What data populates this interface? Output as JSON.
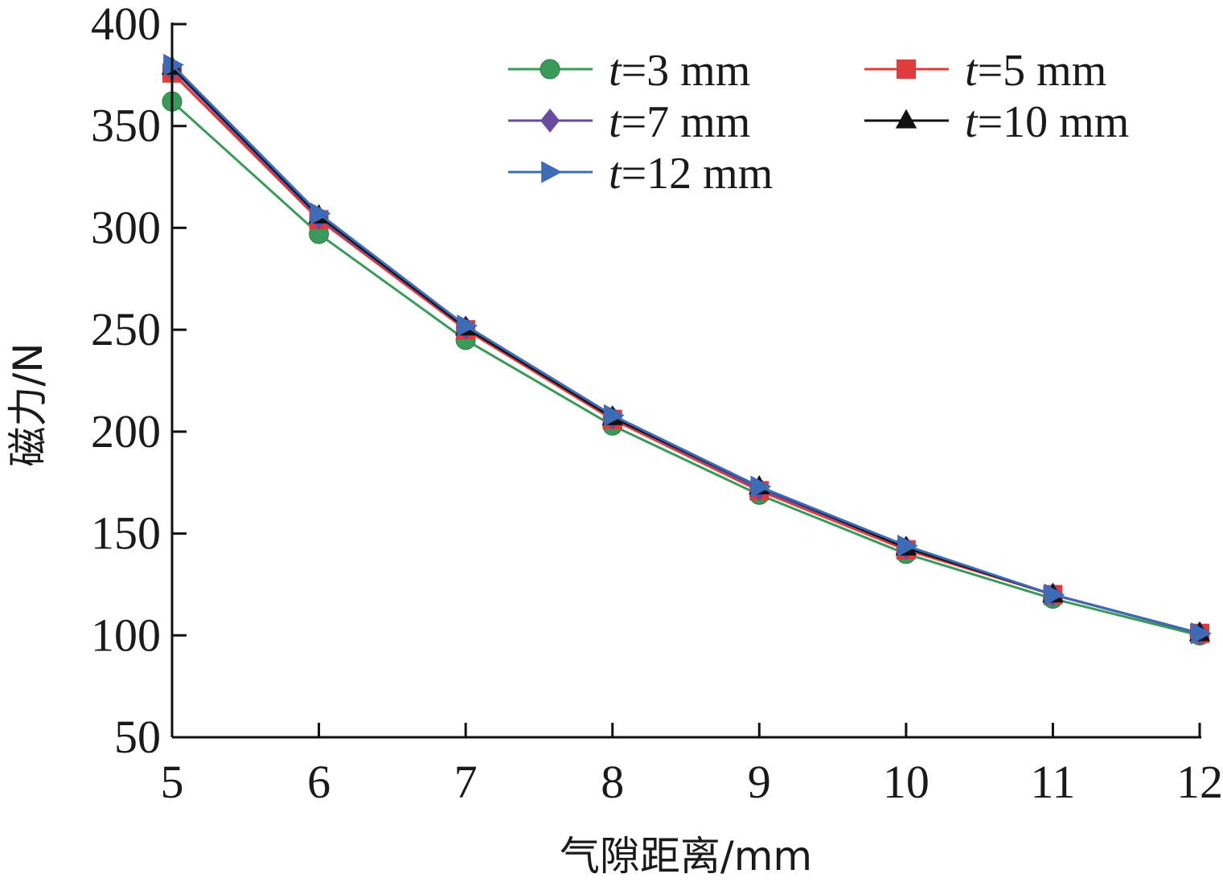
{
  "chart_data": {
    "type": "line",
    "xlabel": "气隙距离/mm",
    "ylabel": "磁力/N",
    "xlim": [
      5,
      12
    ],
    "ylim": [
      50,
      400
    ],
    "x": [
      5,
      6,
      7,
      8,
      9,
      10,
      11,
      12
    ],
    "x_ticks": [
      "5",
      "6",
      "7",
      "8",
      "9",
      "10",
      "11",
      "12"
    ],
    "y_ticks": [
      "50",
      "100",
      "150",
      "200",
      "250",
      "300",
      "350",
      "400"
    ],
    "grid": false,
    "legend_position": "top-right",
    "series": [
      {
        "name_prefix": "t",
        "name_suffix": "=3 mm",
        "color": "#3a9a5a",
        "marker": "circle",
        "values": [
          362,
          297,
          245,
          203,
          169,
          140,
          118,
          100
        ]
      },
      {
        "name_prefix": "t",
        "name_suffix": "=5 mm",
        "color": "#e03c3c",
        "marker": "square",
        "values": [
          376,
          304,
          250,
          206,
          171,
          142,
          120,
          101
        ]
      },
      {
        "name_prefix": "t",
        "name_suffix": "=7 mm",
        "color": "#6a4a9e",
        "marker": "diamond",
        "values": [
          378,
          305,
          251,
          207,
          172,
          143,
          120,
          101
        ]
      },
      {
        "name_prefix": "t",
        "name_suffix": "=10 mm",
        "color": "#111111",
        "marker": "triangle-up",
        "values": [
          379,
          306,
          251,
          207,
          173,
          143,
          120,
          101
        ]
      },
      {
        "name_prefix": "t",
        "name_suffix": "=12 mm",
        "color": "#3d6bb5",
        "marker": "triangle-right",
        "values": [
          380,
          307,
          252,
          208,
          173,
          144,
          120,
          101
        ]
      }
    ]
  }
}
